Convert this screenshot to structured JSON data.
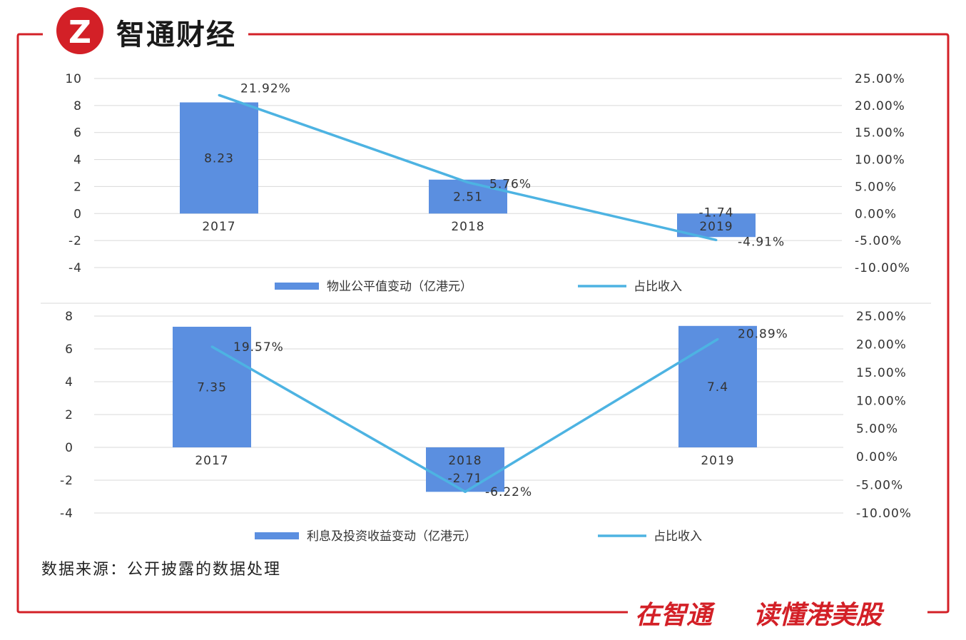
{
  "header": {
    "brand_name": "智通财经",
    "logo_glyph": "Z"
  },
  "footer": {
    "slogan_a": "在智通",
    "slogan_b": "读懂港美股"
  },
  "source_note": "数据来源：公开披露的数据处理",
  "colors": {
    "frame": "#d32027",
    "bar": "#5b8fe0",
    "line": "#4db3e2",
    "grid": "#d9d9d9",
    "logo": "#d32027"
  },
  "chart_data": [
    {
      "type": "bar+line",
      "categories": [
        "2017",
        "2018",
        "2019"
      ],
      "bar_series": {
        "name": "物业公平值变动（亿港元）",
        "values": [
          8.23,
          2.51,
          -1.74
        ],
        "labels": [
          "8.23",
          "2.51",
          "-1.74"
        ]
      },
      "line_series": {
        "name": "占比收入",
        "values": [
          21.92,
          5.76,
          -4.91
        ],
        "labels": [
          "21.92%",
          "5.76%",
          "-4.91%"
        ]
      },
      "left_axis": {
        "ticks": [
          10,
          8,
          6,
          4,
          2,
          0,
          -2,
          -4
        ],
        "ylim": [
          -4,
          10
        ]
      },
      "right_axis": {
        "ticks": [
          "25.00%",
          "20.00%",
          "15.00%",
          "10.00%",
          "5.00%",
          "0.00%",
          "-5.00%",
          "-10.00%"
        ],
        "ylim": [
          -10,
          25
        ]
      },
      "legend": "bottom"
    },
    {
      "type": "bar+line",
      "categories": [
        "2017",
        "2018",
        "2019"
      ],
      "bar_series": {
        "name": "利息及投资收益变动（亿港元）",
        "values": [
          7.35,
          -2.71,
          7.4
        ],
        "labels": [
          "7.35",
          "-2.71",
          "7.4"
        ]
      },
      "line_series": {
        "name": "占比收入",
        "values": [
          19.57,
          -6.22,
          20.89
        ],
        "labels": [
          "19.57%",
          "-6.22%",
          "20.89%"
        ]
      },
      "left_axis": {
        "ticks": [
          8,
          6,
          4,
          2,
          0,
          -2,
          -4
        ],
        "ylim": [
          -4,
          8
        ]
      },
      "right_axis": {
        "ticks": [
          "25.00%",
          "20.00%",
          "15.00%",
          "10.00%",
          "5.00%",
          "0.00%",
          "-5.00%",
          "-10.00%"
        ],
        "ylim": [
          -10,
          25
        ]
      },
      "legend": "bottom"
    }
  ]
}
